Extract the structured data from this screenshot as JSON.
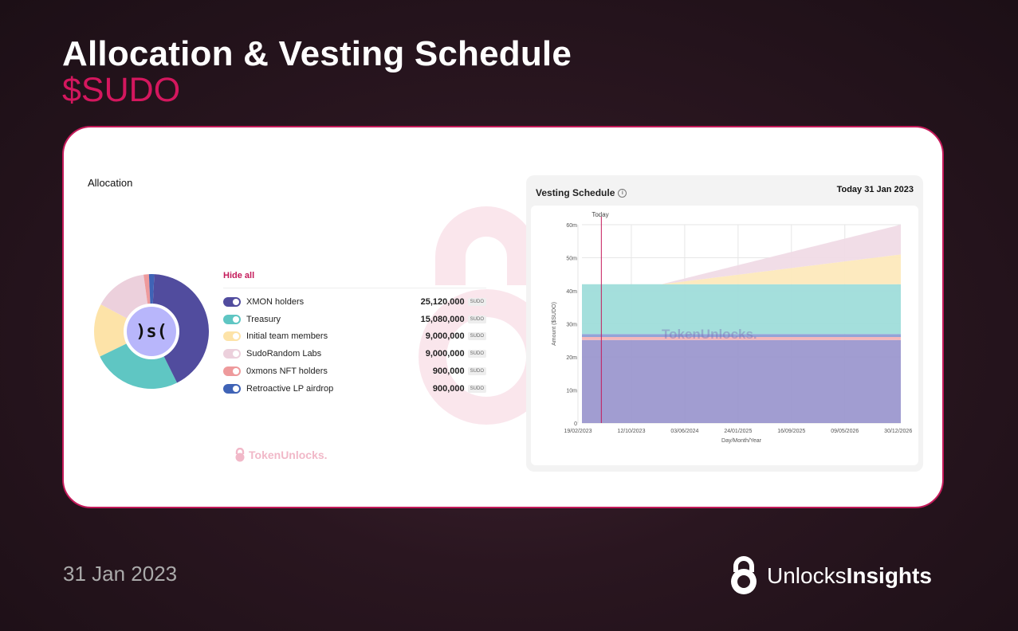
{
  "header": {
    "title": "Allocation & Vesting Schedule",
    "token": "$SUDO"
  },
  "allocation": {
    "label": "Allocation",
    "hide_all": "Hide all",
    "logo_text": ")s(",
    "watermark": "TokenUnlocks.",
    "unit_badge": "SUDO",
    "items": [
      {
        "name": "XMON holders",
        "value": "25,120,000",
        "amount": 25120000,
        "color": "#514c9e"
      },
      {
        "name": "Treasury",
        "value": "15,080,000",
        "amount": 15080000,
        "color": "#5fc6c3"
      },
      {
        "name": "Initial team members",
        "value": "9,000,000",
        "amount": 9000000,
        "color": "#fde3a8"
      },
      {
        "name": "SudoRandom Labs",
        "value": "9,000,000",
        "amount": 9000000,
        "color": "#ecd0dc"
      },
      {
        "name": "0xmons NFT holders",
        "value": "900,000",
        "amount": 900000,
        "color": "#ee9a9c"
      },
      {
        "name": "Retroactive LP airdrop",
        "value": "900,000",
        "amount": 900000,
        "color": "#3f63b6"
      }
    ]
  },
  "vesting": {
    "title": "Vesting Schedule",
    "info_icon": "i",
    "today_label": "Today 31 Jan 2023",
    "today_marker": "Today",
    "watermark": "TokenUnlocks."
  },
  "chart_data": {
    "type": "area",
    "title": "Vesting Schedule",
    "xlabel": "Day/Month/Year",
    "ylabel": "Amount ($SUDO)",
    "ylim": [
      0,
      60000000
    ],
    "y_ticks": [
      "0",
      "10m",
      "20m",
      "30m",
      "40m",
      "50m",
      "60m"
    ],
    "x_ticks": [
      "19/02/2023",
      "12/10/2023",
      "03/06/2024",
      "24/01/2025",
      "16/09/2025",
      "09/05/2026",
      "30/12/2026"
    ],
    "x_range_months": [
      0,
      48
    ],
    "today_month": 0.4,
    "series": [
      {
        "name": "XMON holders",
        "color": "#9c98cf",
        "points": [
          [
            0,
            25120000
          ],
          [
            48,
            25120000
          ]
        ]
      },
      {
        "name": "0xmons NFT holders",
        "color": "#f4b4b6",
        "points": [
          [
            0,
            900000
          ],
          [
            48,
            900000
          ]
        ]
      },
      {
        "name": "Retroactive LP airdrop",
        "color": "#8d9fd6",
        "points": [
          [
            0,
            900000
          ],
          [
            48,
            900000
          ]
        ]
      },
      {
        "name": "Treasury",
        "color": "#9fddda",
        "points": [
          [
            0,
            15080000
          ],
          [
            48,
            15080000
          ]
        ]
      },
      {
        "name": "Initial team members",
        "color": "#fde9bc",
        "points": [
          [
            0,
            0
          ],
          [
            12,
            0
          ],
          [
            48,
            9000000
          ]
        ]
      },
      {
        "name": "SudoRandom Labs",
        "color": "#f0dbe6",
        "points": [
          [
            0,
            0
          ],
          [
            12,
            0
          ],
          [
            48,
            9000000
          ]
        ]
      }
    ]
  },
  "footer": {
    "date": "31 Jan 2023",
    "brand_light": "Unlocks",
    "brand_bold": "Insights"
  }
}
